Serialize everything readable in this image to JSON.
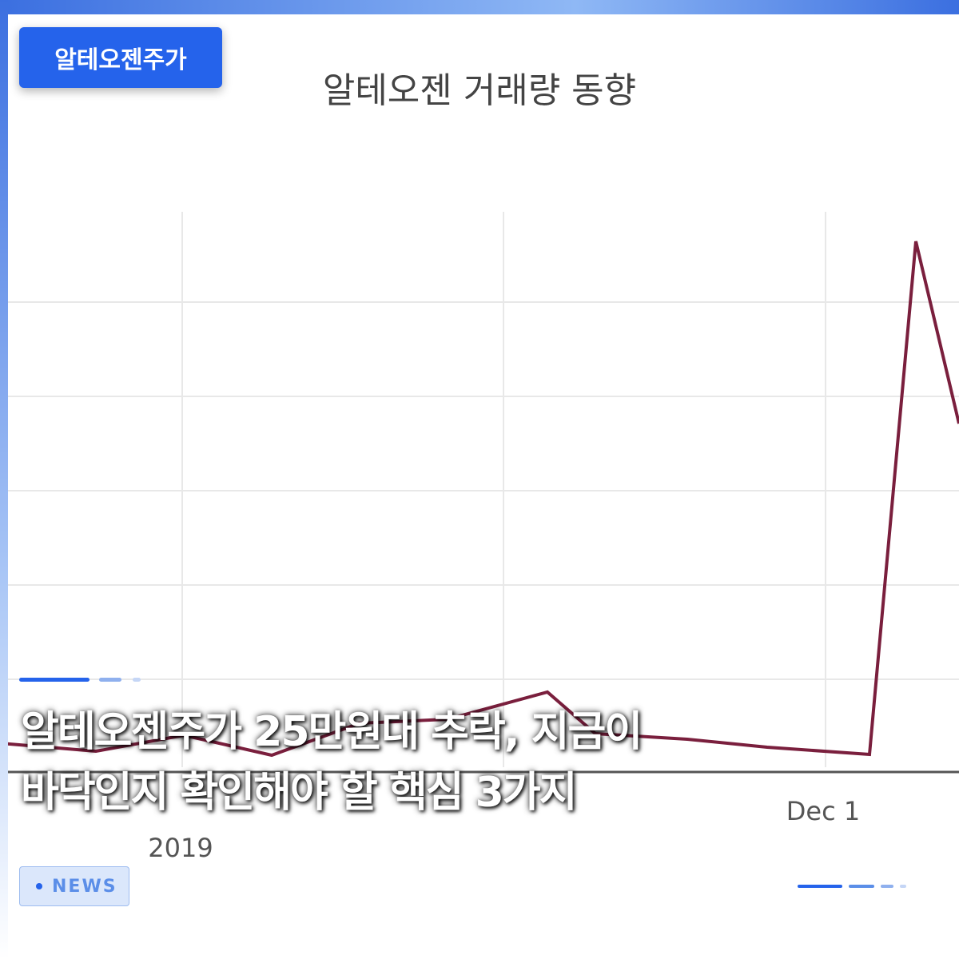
{
  "badge": "알테오젠주가",
  "background": {
    "chart_title": "알테오젠 거래량 동향",
    "x_labels": [
      "Dec 1",
      "2019"
    ]
  },
  "headline": [
    "알테오젠주가 25만원대 추락, 지금이",
    "바닥인지 확인해야 할 핵심 3가지"
  ],
  "tag": "NEWS"
}
